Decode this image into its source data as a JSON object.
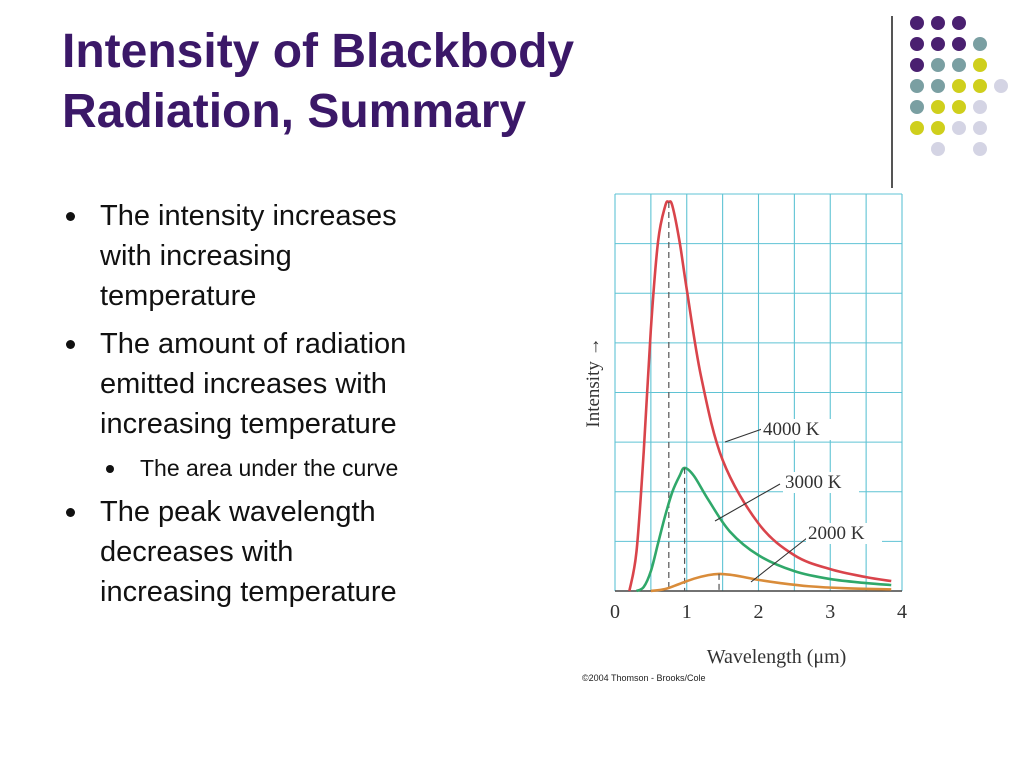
{
  "slide": {
    "title_lines": [
      "Intensity of Blackbody",
      "Radiation, Summary"
    ],
    "bullets": [
      {
        "lines": [
          "The intensity increases",
          "with increasing",
          "temperature"
        ]
      },
      {
        "lines": [
          "The amount of radiation",
          "emitted increases with",
          "increasing temperature"
        ],
        "sub": [
          {
            "lines": [
              "The area under the curve"
            ]
          }
        ]
      },
      {
        "lines": [
          "The peak wavelength",
          "decreases with",
          "increasing temperature"
        ]
      }
    ],
    "colors": {
      "title": "#3b1868",
      "dots_purple": "#4a2070",
      "dots_teal": "#7a9fa2",
      "dots_yellow": "#cfcf1c",
      "dots_lavender": "#d4d4e4"
    }
  },
  "chart_data": {
    "type": "line",
    "title": "",
    "xlabel": "Wavelength (μm)",
    "ylabel": "Intensity →",
    "xlim": [
      0,
      4
    ],
    "ylim": [
      0,
      1.0
    ],
    "x_ticks": [
      "0",
      "1",
      "2",
      "3",
      "4"
    ],
    "grid": true,
    "series": [
      {
        "name": "4000 K",
        "color": "#d9444b",
        "peak_x": 0.75,
        "x": [
          0.2,
          0.3,
          0.4,
          0.5,
          0.6,
          0.7,
          0.75,
          0.8,
          0.9,
          1.0,
          1.2,
          1.5,
          2.0,
          2.5,
          3.0,
          3.5,
          3.85
        ],
        "y": [
          0.0,
          0.1,
          0.35,
          0.66,
          0.88,
          0.97,
          0.98,
          0.97,
          0.88,
          0.76,
          0.54,
          0.33,
          0.17,
          0.09,
          0.055,
          0.035,
          0.025
        ]
      },
      {
        "name": "3000 K",
        "color": "#30a86a",
        "peak_x": 0.97,
        "x": [
          0.3,
          0.4,
          0.5,
          0.6,
          0.7,
          0.8,
          0.9,
          0.97,
          1.1,
          1.3,
          1.6,
          2.0,
          2.5,
          3.0,
          3.5,
          3.85
        ],
        "y": [
          0.0,
          0.01,
          0.05,
          0.12,
          0.19,
          0.25,
          0.29,
          0.31,
          0.29,
          0.23,
          0.15,
          0.09,
          0.05,
          0.03,
          0.02,
          0.015
        ]
      },
      {
        "name": "2000 K",
        "color": "#d98c3a",
        "peak_x": 1.45,
        "x": [
          0.5,
          0.7,
          0.9,
          1.1,
          1.3,
          1.45,
          1.6,
          1.8,
          2.0,
          2.3,
          2.7,
          3.2,
          3.85
        ],
        "y": [
          0.0,
          0.005,
          0.018,
          0.031,
          0.04,
          0.043,
          0.041,
          0.035,
          0.028,
          0.02,
          0.012,
          0.007,
          0.004
        ]
      }
    ],
    "annotations": [
      "4000 K",
      "3000 K",
      "2000 K"
    ],
    "credit": "©2004 Thomson - Brooks/Cole"
  }
}
